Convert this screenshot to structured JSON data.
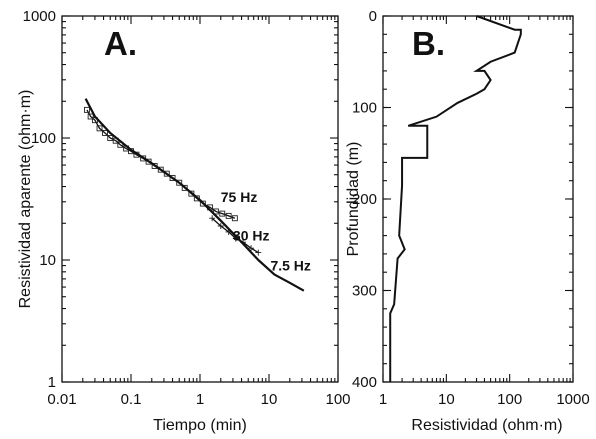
{
  "chart_data": [
    {
      "type": "line",
      "panel_label": "A.",
      "xlabel": "Tiempo (min)",
      "ylabel": "Resistividad aparente (ohm·m)",
      "x_scale": "log",
      "y_scale": "log",
      "xlim": [
        0.01,
        100
      ],
      "ylim": [
        1,
        1000
      ],
      "x_ticks": [
        0.01,
        0.1,
        1,
        10,
        100
      ],
      "x_tick_labels": [
        "0.01",
        "0.1",
        "1",
        "10",
        "100"
      ],
      "y_ticks": [
        1,
        10,
        100,
        1000
      ],
      "y_tick_labels": [
        "1",
        "10",
        "100",
        "1000"
      ],
      "grid": false,
      "series": [
        {
          "name": "75 Hz",
          "marker": "square",
          "x": [
            0.023,
            0.026,
            0.03,
            0.035,
            0.042,
            0.05,
            0.06,
            0.07,
            0.085,
            0.1,
            0.12,
            0.15,
            0.18,
            0.22,
            0.27,
            0.33,
            0.4,
            0.5,
            0.6,
            0.75,
            0.9,
            1.1,
            1.4,
            1.7,
            2.1,
            2.6,
            3.2
          ],
          "y": [
            170,
            150,
            140,
            120,
            110,
            100,
            95,
            88,
            82,
            78,
            73,
            68,
            64,
            59,
            55,
            51,
            47,
            43,
            39,
            35,
            32,
            29,
            27,
            25,
            24,
            23,
            22
          ]
        },
        {
          "name": "30 Hz",
          "marker": "plus",
          "x": [
            1.5,
            2.0,
            2.6,
            3.3,
            4.2,
            5.5,
            7.0
          ],
          "y": [
            22,
            19,
            17,
            15,
            14,
            12.5,
            11.5
          ]
        },
        {
          "name": "7.5 Hz",
          "marker": "none",
          "x": [
            0.022,
            0.03,
            0.05,
            0.1,
            0.2,
            0.5,
            1,
            2,
            4,
            7,
            12,
            20,
            32
          ],
          "y": [
            210,
            150,
            110,
            80,
            62,
            43,
            31,
            21,
            14,
            10,
            7.6,
            6.5,
            5.6
          ]
        }
      ]
    },
    {
      "type": "line",
      "panel_label": "B.",
      "xlabel": "Resistividad (ohm·m)",
      "ylabel": "Profundidad (m)",
      "x_scale": "log",
      "y_scale": "linear",
      "y_inverted": true,
      "xlim": [
        1,
        1000
      ],
      "ylim": [
        0,
        400
      ],
      "x_ticks": [
        1,
        10,
        100,
        1000
      ],
      "x_tick_labels": [
        "1",
        "10",
        "100",
        "1000"
      ],
      "y_ticks": [
        0,
        100,
        200,
        300,
        400
      ],
      "y_tick_labels": [
        "0",
        "100",
        "200",
        "300",
        "400"
      ],
      "grid": false,
      "series": [
        {
          "step_profile": true,
          "x": [
            30,
            120,
            150,
            150,
            120,
            50,
            30,
            40,
            50,
            40,
            30,
            15,
            7,
            2.5,
            5,
            5,
            2,
            2,
            1.8,
            2.2,
            1.7,
            1.5,
            1.3,
            1.3
          ],
          "y": [
            0,
            15,
            15,
            20,
            40,
            50,
            60,
            60,
            70,
            80,
            85,
            95,
            110,
            120,
            120,
            155,
            155,
            185,
            240,
            255,
            265,
            315,
            325,
            400
          ]
        }
      ]
    }
  ]
}
